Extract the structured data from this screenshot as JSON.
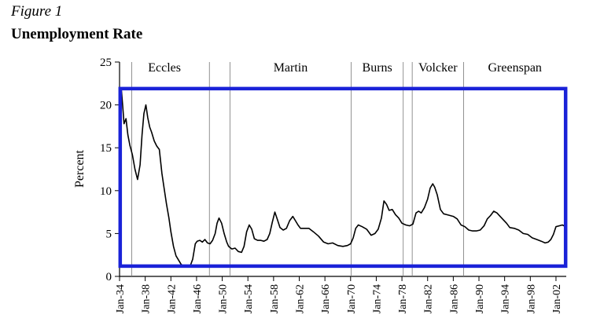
{
  "figure": {
    "label": "Figure 1",
    "title": "Unemployment Rate"
  },
  "chart_data": {
    "type": "line",
    "ylabel": "Percent",
    "xlabel": "",
    "ylim": [
      0,
      25
    ],
    "yticks": [
      0,
      5,
      10,
      15,
      20,
      25
    ],
    "xlim": [
      1934.0,
      2003.6
    ],
    "xticks": [
      {
        "label": "Jan-34",
        "year": 1934
      },
      {
        "label": "Jan-38",
        "year": 1938
      },
      {
        "label": "Jan-42",
        "year": 1942
      },
      {
        "label": "Jan-46",
        "year": 1946
      },
      {
        "label": "Jan-50",
        "year": 1950
      },
      {
        "label": "Jan-54",
        "year": 1954
      },
      {
        "label": "Jan-58",
        "year": 1958
      },
      {
        "label": "Jan-62",
        "year": 1962
      },
      {
        "label": "Jan-66",
        "year": 1966
      },
      {
        "label": "Jan-70",
        "year": 1970
      },
      {
        "label": "Jan-74",
        "year": 1974
      },
      {
        "label": "Jan-78",
        "year": 1978
      },
      {
        "label": "Jan-82",
        "year": 1982
      },
      {
        "label": "Jan-86",
        "year": 1986
      },
      {
        "label": "Jan-90",
        "year": 1990
      },
      {
        "label": "Jan-94",
        "year": 1994
      },
      {
        "label": "Jan-98",
        "year": 1998
      },
      {
        "label": "Jan-02",
        "year": 2002
      }
    ],
    "grid": false,
    "eras": [
      {
        "name": "Eccles",
        "start": 1934.0,
        "end": 1948.0
      },
      {
        "name": "Martin",
        "start": 1951.2,
        "end": 1970.1
      },
      {
        "name": "Burns",
        "start": 1970.1,
        "end": 1978.2
      },
      {
        "name": "Volcker",
        "start": 1979.6,
        "end": 1987.6
      },
      {
        "name": "Greenspan",
        "start": 1987.6,
        "end": 2003.6
      }
    ],
    "era_boundaries": [
      1935.9,
      1948.0,
      1951.2,
      1970.1,
      1978.2,
      1979.6,
      1987.6
    ],
    "highlight_box": {
      "x": [
        1934.1,
        2003.5
      ],
      "y": [
        1.2,
        21.9
      ],
      "color": "#1a22d8"
    },
    "series": [
      {
        "color": "#000000",
        "x": [
          1934.0,
          1934.3,
          1934.5,
          1934.7,
          1935.0,
          1935.3,
          1935.6,
          1936.0,
          1936.4,
          1936.8,
          1937.2,
          1937.5,
          1937.8,
          1938.1,
          1938.4,
          1938.7,
          1939.0,
          1939.4,
          1939.8,
          1940.2,
          1940.6,
          1940.9,
          1941.3,
          1941.7,
          1942.0,
          1942.4,
          1942.8,
          1943.2,
          1943.6,
          1944.0,
          1944.5,
          1945.0,
          1945.4,
          1945.8,
          1946.1,
          1946.5,
          1946.9,
          1947.3,
          1947.7,
          1948.1,
          1948.5,
          1948.9,
          1949.2,
          1949.5,
          1949.9,
          1950.3,
          1950.7,
          1951.0,
          1951.5,
          1952.0,
          1952.5,
          1953.0,
          1953.4,
          1953.8,
          1954.2,
          1954.6,
          1955.0,
          1955.5,
          1956.0,
          1956.5,
          1957.0,
          1957.4,
          1957.8,
          1958.2,
          1958.6,
          1959.0,
          1959.5,
          1960.0,
          1960.5,
          1961.0,
          1961.4,
          1961.8,
          1962.2,
          1962.8,
          1963.5,
          1964.2,
          1965.0,
          1965.8,
          1966.5,
          1967.2,
          1968.0,
          1968.8,
          1969.5,
          1970.0,
          1970.4,
          1970.8,
          1971.2,
          1971.8,
          1972.5,
          1973.2,
          1973.8,
          1974.3,
          1974.8,
          1975.2,
          1975.6,
          1976.0,
          1976.5,
          1977.0,
          1977.5,
          1978.0,
          1978.6,
          1979.2,
          1979.7,
          1980.2,
          1980.6,
          1981.0,
          1981.5,
          1982.0,
          1982.4,
          1982.8,
          1983.1,
          1983.5,
          1984.0,
          1984.5,
          1985.0,
          1985.5,
          1986.0,
          1986.6,
          1987.2,
          1987.8,
          1988.4,
          1989.0,
          1989.6,
          1990.2,
          1990.8,
          1991.3,
          1991.8,
          1992.3,
          1992.8,
          1993.3,
          1993.8,
          1994.3,
          1994.8,
          1995.5,
          1996.2,
          1996.9,
          1997.6,
          1998.3,
          1999.0,
          1999.7,
          2000.3,
          2000.8,
          2001.2,
          2001.6,
          2002.0,
          2002.5,
          2003.0,
          2003.5
        ],
        "y": [
          20.5,
          21.7,
          19.8,
          17.8,
          18.4,
          16.5,
          15.3,
          14.2,
          12.5,
          11.3,
          13.0,
          16.5,
          19.0,
          20.0,
          18.5,
          17.4,
          16.8,
          15.8,
          15.2,
          14.8,
          12.0,
          10.5,
          8.5,
          6.8,
          5.2,
          3.5,
          2.4,
          1.9,
          1.4,
          1.2,
          1.1,
          1.2,
          2.0,
          3.8,
          4.1,
          4.2,
          4.0,
          4.3,
          3.9,
          3.8,
          4.2,
          5.0,
          6.2,
          6.8,
          6.2,
          5.0,
          4.0,
          3.5,
          3.2,
          3.3,
          2.9,
          2.8,
          3.5,
          5.2,
          6.0,
          5.5,
          4.4,
          4.2,
          4.2,
          4.1,
          4.3,
          5.0,
          6.3,
          7.5,
          6.6,
          5.7,
          5.4,
          5.6,
          6.5,
          7.0,
          6.5,
          6.0,
          5.6,
          5.6,
          5.6,
          5.2,
          4.7,
          4.0,
          3.8,
          3.9,
          3.6,
          3.5,
          3.6,
          3.8,
          4.5,
          5.6,
          6.0,
          5.8,
          5.5,
          4.8,
          5.0,
          5.5,
          6.8,
          8.8,
          8.4,
          7.7,
          7.8,
          7.2,
          6.8,
          6.2,
          6.0,
          5.9,
          6.1,
          7.4,
          7.6,
          7.4,
          8.0,
          9.0,
          10.3,
          10.8,
          10.4,
          9.5,
          7.8,
          7.3,
          7.2,
          7.1,
          7.0,
          6.7,
          6.0,
          5.8,
          5.4,
          5.3,
          5.3,
          5.4,
          5.9,
          6.7,
          7.1,
          7.6,
          7.4,
          7.0,
          6.6,
          6.2,
          5.7,
          5.6,
          5.4,
          5.0,
          4.9,
          4.5,
          4.3,
          4.1,
          3.9,
          4.0,
          4.3,
          4.9,
          5.8,
          5.9,
          6.0,
          5.8
        ]
      }
    ]
  }
}
